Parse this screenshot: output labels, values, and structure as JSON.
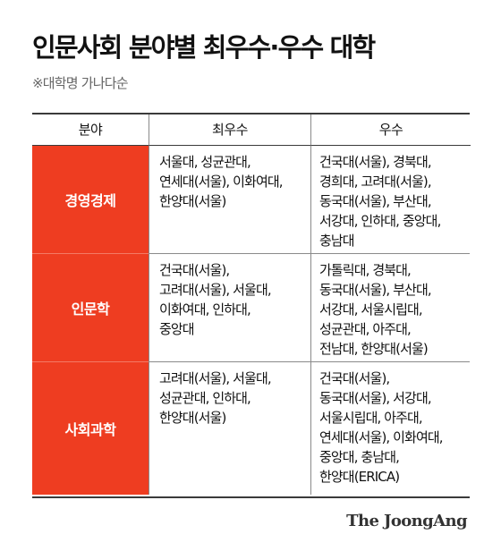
{
  "title": "인문사회 분야별 최우수·우수 대학",
  "subtitle": "※대학명 가나다순",
  "table": {
    "headers": [
      "분야",
      "최우수",
      "우수"
    ],
    "rows": [
      {
        "field": "경영경제",
        "top": [
          "서울대, 성균관대,",
          "연세대(서울), 이화여대,",
          "한양대(서울)"
        ],
        "excellent": [
          "건국대(서울), 경북대,",
          "경희대, 고려대(서울),",
          "동국대(서울), 부산대,",
          "서강대, 인하대, 중앙대,",
          "충남대"
        ]
      },
      {
        "field": "인문학",
        "top": [
          "건국대(서울),",
          "고려대(서울), 서울대,",
          "이화여대, 인하대,",
          "중앙대"
        ],
        "excellent": [
          "가톨릭대, 경북대,",
          "동국대(서울), 부산대,",
          "서강대, 서울시립대,",
          "성균관대, 아주대,",
          "전남대, 한양대(서울)"
        ]
      },
      {
        "field": "사회과학",
        "top": [
          "고려대(서울), 서울대,",
          "성균관대, 인하대,",
          "한양대(서울)"
        ],
        "excellent": [
          "건국대(서울),",
          "동국대(서울), 서강대,",
          "서울시립대, 아주대,",
          "연세대(서울), 이화여대,",
          "중앙대, 충남대,",
          "한양대(ERICA)"
        ]
      }
    ]
  },
  "logo": "The JoongAng",
  "colors": {
    "accent": "#ee3d21",
    "text": "#111111",
    "subtle": "#666666"
  }
}
